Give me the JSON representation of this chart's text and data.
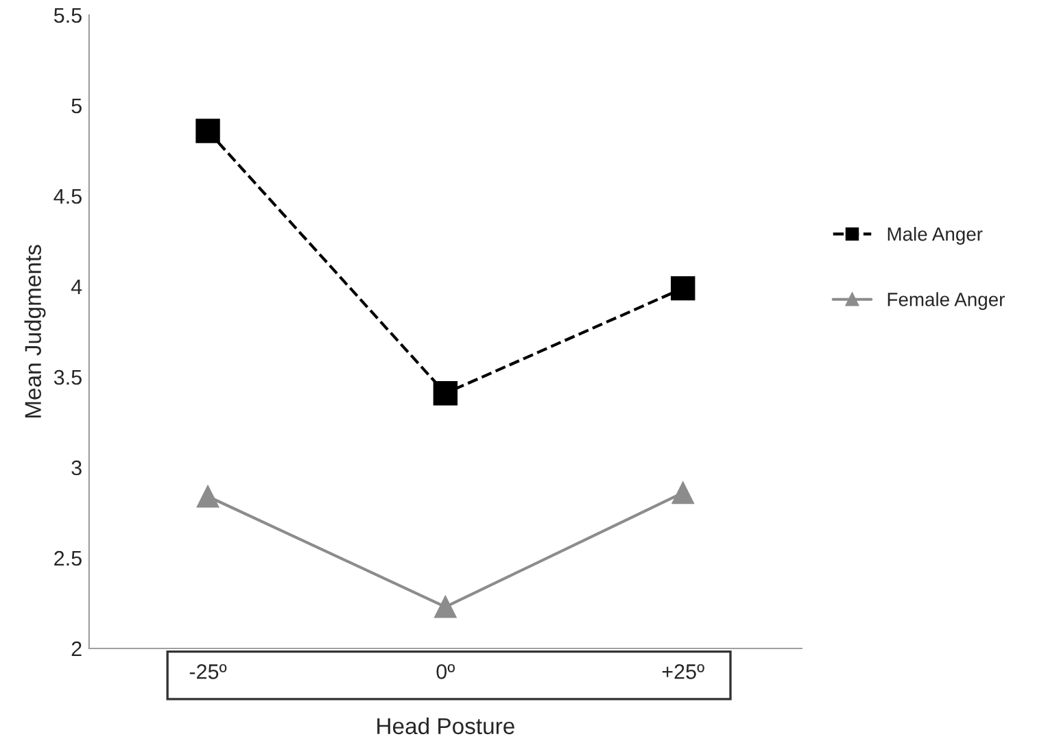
{
  "chart_data": {
    "type": "line",
    "xlabel": "Head Posture",
    "ylabel": "Mean Judgments",
    "categories": [
      "-25º",
      "0º",
      "+25º"
    ],
    "series": [
      {
        "name": "Male Anger",
        "color": "#000000",
        "values": [
          4.86,
          3.41,
          3.99
        ],
        "marker": "square",
        "line_style": "dashed"
      },
      {
        "name": "Female Anger",
        "color": "#8c8c8c",
        "values": [
          2.84,
          2.23,
          2.86
        ],
        "marker": "triangle",
        "line_style": "solid"
      }
    ],
    "ylim": [
      2,
      5.5
    ],
    "yticks": [
      2,
      2.5,
      3,
      3.5,
      4,
      4.5,
      5,
      5.5
    ],
    "grid": false,
    "legend": "right"
  }
}
